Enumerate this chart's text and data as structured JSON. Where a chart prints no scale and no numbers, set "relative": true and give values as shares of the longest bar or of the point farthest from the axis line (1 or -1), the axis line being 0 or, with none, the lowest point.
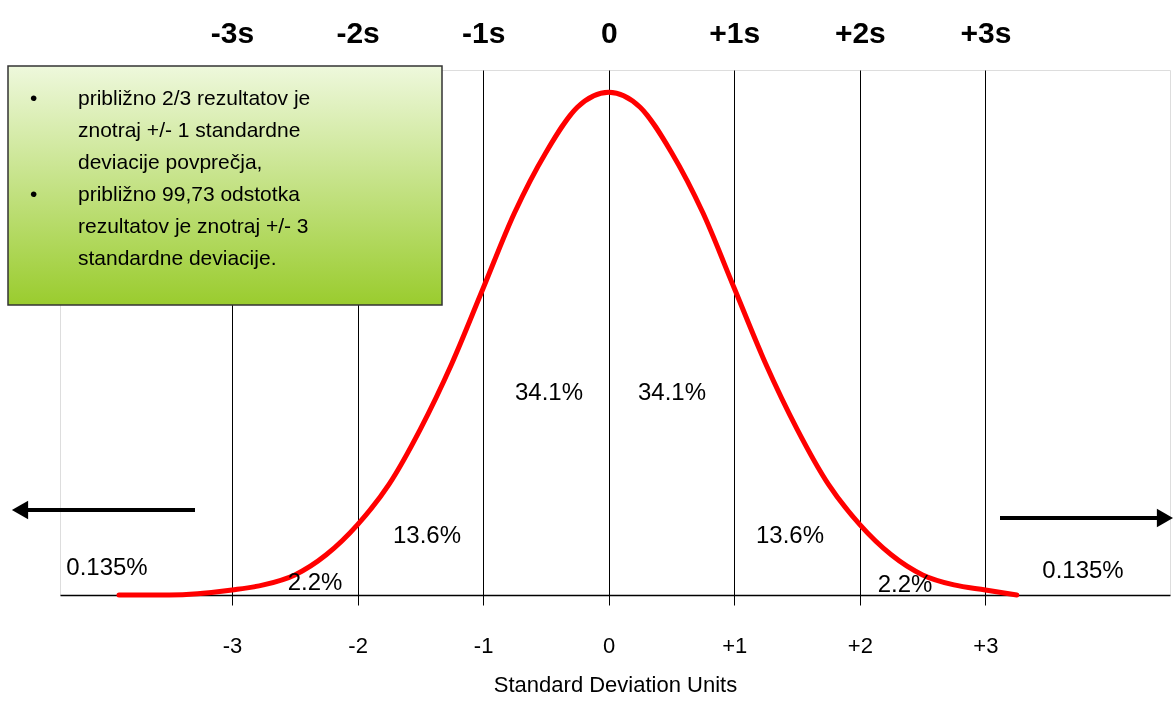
{
  "chart_data": {
    "type": "line",
    "relative": true,
    "xlabel": "Standard Deviation Units",
    "x": [
      -3.9,
      -3.5,
      -3.0,
      -2.75,
      -2.5,
      -2.25,
      -2.0,
      -1.75,
      -1.5,
      -1.25,
      -1.0,
      -0.75,
      -0.5,
      -0.25,
      0.0,
      0.25,
      0.5,
      0.75,
      1.0,
      1.25,
      1.5,
      1.75,
      2.0,
      2.25,
      2.5,
      2.75,
      3.0,
      3.25
    ],
    "series": [
      {
        "color": "#ff0000",
        "values": [
          0.0,
          0.0,
          0.01,
          0.02,
          0.04,
          0.08,
          0.14,
          0.22,
          0.33,
          0.46,
          0.61,
          0.76,
          0.88,
          0.97,
          1.0,
          0.97,
          0.88,
          0.76,
          0.61,
          0.46,
          0.33,
          0.22,
          0.14,
          0.08,
          0.04,
          0.02,
          0.01,
          0.0
        ]
      }
    ],
    "xlim": [
      -4.37,
      4.47
    ],
    "xticks": [
      {
        "value": -3,
        "label": "-3"
      },
      {
        "value": -2,
        "label": "-2"
      },
      {
        "value": -1,
        "label": "-1"
      },
      0,
      {
        "value": 1,
        "label": "+1"
      },
      {
        "value": 2,
        "label": "+2"
      },
      {
        "value": 3,
        "label": "+3"
      }
    ],
    "x2lim": [
      -4.37,
      4.47
    ],
    "x2ticks": [
      {
        "value": -3,
        "label": "-3s"
      },
      {
        "value": -2,
        "label": "-2s"
      },
      {
        "value": -1,
        "label": "-1s"
      },
      0,
      {
        "value": 1,
        "label": "+1s"
      },
      {
        "value": 2,
        "label": "+2s"
      },
      {
        "value": 3,
        "label": "+3s"
      }
    ],
    "grid": "x",
    "marker": "none",
    "line_style": "solid",
    "tick_labels": "x",
    "annotations": [
      "• približno 2/3 rezultatov je znotraj +/- 1 standardne deviacije povprečja,",
      "• približno 99,73 odstotka rezultatov je znotraj +/- 3 standardne deviacije.",
      "34.1%",
      "34.1%",
      "13.6%",
      "13.6%",
      "2.2%",
      "2.2%",
      "0.135%",
      "0.135%"
    ]
  }
}
